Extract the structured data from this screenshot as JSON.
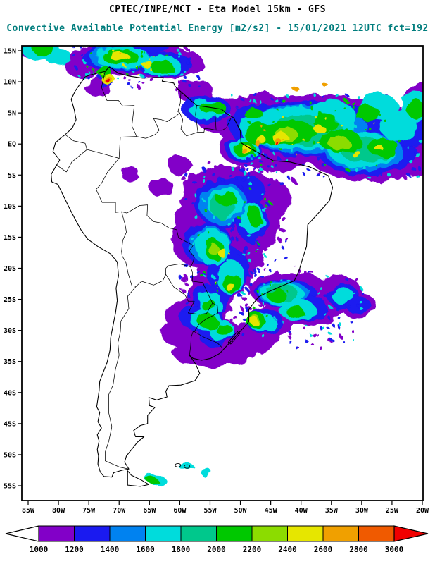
{
  "header": {
    "title1": "CPTEC/INPE/MCT -  Eta Model 15km - GFS",
    "title2": "Convective Available Potential Energy [m2/s2] - 15/01/2021 12UTC fct=192",
    "title2_color": "#007d7d"
  },
  "map": {
    "region": "South America",
    "lat_labels": [
      "15N",
      "10N",
      "5N",
      "EQ",
      "5S",
      "10S",
      "15S",
      "20S",
      "25S",
      "30S",
      "35S",
      "40S",
      "45S",
      "50S",
      "55S"
    ],
    "lon_labels": [
      "85W",
      "80W",
      "75W",
      "70W",
      "65W",
      "60W",
      "55W",
      "50W",
      "45W",
      "40W",
      "35W",
      "30W",
      "25W",
      "20W"
    ]
  },
  "colorbar": {
    "labels": [
      "1000",
      "1200",
      "1400",
      "1600",
      "1800",
      "2000",
      "2200",
      "2400",
      "2600",
      "2800",
      "3000"
    ],
    "segment_colors": [
      "#8200C8",
      "#1A1AF0",
      "#0082F0",
      "#00DCDC",
      "#00C88C",
      "#00C800",
      "#8CDC00",
      "#E6E600",
      "#F0A000",
      "#F05A00"
    ],
    "below_min_color": "#FFFFFF",
    "above_max_color": "#F00000",
    "units": "m2/s2"
  }
}
